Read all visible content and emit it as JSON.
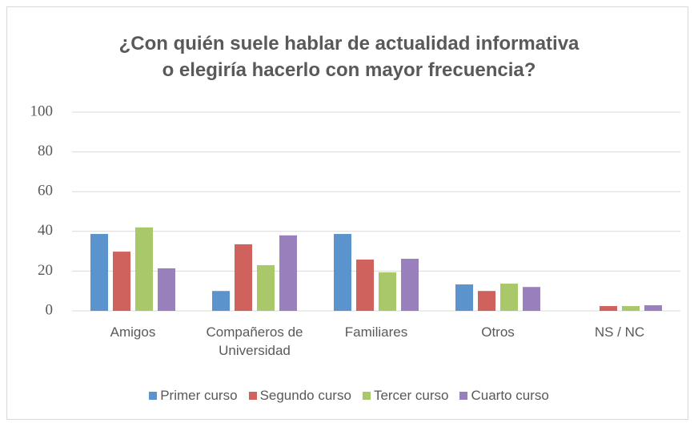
{
  "chart_data": {
    "type": "bar",
    "title": [
      "¿Con quién suele hablar de actualidad informativa",
      "o elegiría hacerlo con mayor frecuencia?"
    ],
    "categories": [
      "Amigos",
      "Compañeros de Universidad",
      "Familiares",
      "Otros",
      "NS / NC"
    ],
    "series": [
      {
        "name": "Primer curso",
        "color": "#5b94cd",
        "values": [
          38.7,
          10,
          38.7,
          13.3,
          0
        ]
      },
      {
        "name": "Segundo curso",
        "color": "#d0625d",
        "values": [
          29.8,
          33.5,
          25.8,
          10,
          2.4
        ]
      },
      {
        "name": "Tercer curso",
        "color": "#a8c86a",
        "values": [
          42,
          23,
          19.4,
          13.7,
          2.4
        ]
      },
      {
        "name": "Cuarto curso",
        "color": "#9a7fbd",
        "values": [
          21.4,
          38,
          26.2,
          12,
          2.8
        ]
      }
    ],
    "ylim": [
      0,
      100
    ],
    "yticks": [
      0,
      20,
      40,
      60,
      80,
      100
    ],
    "grid": true,
    "legend": "bottom"
  }
}
